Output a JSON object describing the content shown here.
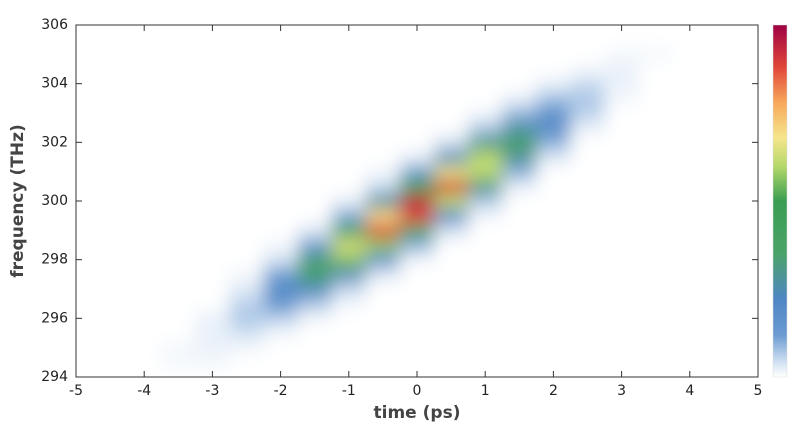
{
  "chart_data": {
    "type": "heatmap",
    "xlabel": "time (ps)",
    "ylabel": "frequency (THz)",
    "x": [
      -5,
      -4.5,
      -4,
      -3.5,
      -3,
      -2.5,
      -2,
      -1.5,
      -1,
      -0.5,
      0,
      0.5,
      1,
      1.5,
      2,
      2.5,
      3,
      3.5,
      4,
      4.5,
      5
    ],
    "y": [
      294,
      294.5,
      295,
      295.5,
      296,
      296.5,
      297,
      297.5,
      298,
      298.5,
      299,
      299.5,
      300,
      300.5,
      301,
      301.5,
      302,
      302.5,
      303,
      303.5,
      304,
      304.5,
      305,
      305.5,
      306
    ],
    "z": [
      [
        0,
        0,
        0,
        0,
        0,
        0,
        0,
        0,
        0,
        0,
        0,
        0,
        0,
        0,
        0,
        0,
        0,
        0,
        0,
        0,
        0
      ],
      [
        0,
        0,
        0,
        0.01,
        0.01,
        0,
        0,
        0,
        0,
        0,
        0,
        0,
        0,
        0,
        0,
        0,
        0,
        0,
        0,
        0,
        0
      ],
      [
        0,
        0,
        0,
        0.01,
        0.02,
        0.01,
        0,
        0,
        0,
        0,
        0,
        0,
        0,
        0,
        0,
        0,
        0,
        0,
        0,
        0,
        0
      ],
      [
        0,
        0,
        0,
        0,
        0.02,
        0.04,
        0.01,
        0,
        0,
        0,
        0,
        0,
        0,
        0,
        0,
        0,
        0,
        0,
        0,
        0,
        0
      ],
      [
        0,
        0,
        0,
        0,
        0.02,
        0.07,
        0.06,
        0.01,
        0,
        0,
        0,
        0,
        0,
        0,
        0,
        0,
        0,
        0,
        0,
        0,
        0
      ],
      [
        0,
        0,
        0,
        0,
        0,
        0.06,
        0.15,
        0.07,
        0.01,
        0,
        0,
        0,
        0,
        0,
        0,
        0,
        0,
        0,
        0,
        0,
        0
      ],
      [
        0,
        0,
        0,
        0,
        0,
        0.03,
        0.19,
        0.23,
        0.05,
        0,
        0,
        0,
        0,
        0,
        0,
        0,
        0,
        0,
        0,
        0,
        0
      ],
      [
        0,
        0,
        0,
        0,
        0,
        0.01,
        0.12,
        0.38,
        0.24,
        0.03,
        0,
        0,
        0,
        0,
        0,
        0,
        0,
        0,
        0,
        0,
        0
      ],
      [
        0,
        0,
        0,
        0,
        0,
        0,
        0.04,
        0.32,
        0.56,
        0.18,
        0.01,
        0,
        0,
        0,
        0,
        0,
        0,
        0,
        0,
        0,
        0
      ],
      [
        0,
        0,
        0,
        0,
        0,
        0,
        0.01,
        0.13,
        0.64,
        0.57,
        0.1,
        0,
        0,
        0,
        0,
        0,
        0,
        0,
        0,
        0,
        0
      ],
      [
        0,
        0,
        0,
        0,
        0,
        0,
        0,
        0.03,
        0.37,
        0.89,
        0.41,
        0.04,
        0,
        0,
        0,
        0,
        0,
        0,
        0,
        0,
        0
      ],
      [
        0,
        0,
        0,
        0,
        0,
        0,
        0,
        0,
        0.11,
        0.7,
        0.88,
        0.21,
        0.01,
        0,
        0,
        0,
        0,
        0,
        0,
        0,
        0
      ],
      [
        0,
        0,
        0,
        0,
        0,
        0,
        0,
        0,
        0.02,
        0.27,
        0.95,
        0.61,
        0.07,
        0,
        0,
        0,
        0,
        0,
        0,
        0,
        0
      ],
      [
        0,
        0,
        0,
        0,
        0,
        0,
        0,
        0,
        0,
        0.05,
        0.51,
        0.9,
        0.3,
        0.02,
        0,
        0,
        0,
        0,
        0,
        0,
        0
      ],
      [
        0,
        0,
        0,
        0,
        0,
        0,
        0,
        0,
        0,
        0.01,
        0.14,
        0.66,
        0.61,
        0.1,
        0,
        0,
        0,
        0,
        0,
        0,
        0
      ],
      [
        0,
        0,
        0,
        0,
        0,
        0,
        0,
        0,
        0,
        0,
        0.02,
        0.24,
        0.61,
        0.28,
        0.03,
        0,
        0,
        0,
        0,
        0,
        0
      ],
      [
        0,
        0,
        0,
        0,
        0,
        0,
        0,
        0,
        0,
        0,
        0,
        0.04,
        0.3,
        0.39,
        0.1,
        0,
        0,
        0,
        0,
        0,
        0
      ],
      [
        0,
        0,
        0,
        0,
        0,
        0,
        0,
        0,
        0,
        0,
        0,
        0,
        0.07,
        0.26,
        0.18,
        0.02,
        0,
        0,
        0,
        0,
        0
      ],
      [
        0,
        0,
        0,
        0,
        0,
        0,
        0,
        0,
        0,
        0,
        0,
        0,
        0.01,
        0.09,
        0.17,
        0.06,
        0,
        0,
        0,
        0,
        0
      ],
      [
        0,
        0,
        0,
        0,
        0,
        0,
        0,
        0,
        0,
        0,
        0,
        0,
        0,
        0.02,
        0.08,
        0.07,
        0.01,
        0,
        0,
        0,
        0
      ],
      [
        0,
        0,
        0,
        0,
        0,
        0,
        0,
        0,
        0,
        0,
        0,
        0,
        0,
        0,
        0.02,
        0.05,
        0.02,
        0,
        0,
        0,
        0
      ],
      [
        0,
        0,
        0,
        0,
        0,
        0,
        0,
        0,
        0,
        0,
        0,
        0,
        0,
        0,
        0,
        0.01,
        0.02,
        0,
        0,
        0,
        0
      ],
      [
        0,
        0,
        0,
        0,
        0,
        0,
        0,
        0,
        0,
        0,
        0,
        0,
        0,
        0,
        0,
        0,
        0.01,
        0.01,
        0,
        0,
        0
      ],
      [
        0,
        0,
        0,
        0,
        0,
        0,
        0,
        0,
        0,
        0,
        0,
        0,
        0,
        0,
        0,
        0,
        0,
        0,
        0,
        0,
        0
      ],
      [
        0,
        0,
        0,
        0,
        0,
        0,
        0,
        0,
        0,
        0,
        0,
        0,
        0,
        0,
        0,
        0,
        0,
        0,
        0,
        0,
        0
      ]
    ],
    "xlim": [
      -5,
      5
    ],
    "ylim": [
      294,
      306
    ],
    "zlim": [
      0,
      1
    ],
    "xticks": [
      -5,
      -4,
      -3,
      -2,
      -1,
      0,
      1,
      2,
      3,
      4,
      5
    ],
    "yticks": [
      294,
      296,
      298,
      300,
      302,
      304,
      306
    ],
    "colorscale": [
      [
        0,
        "#ffffff"
      ],
      [
        0.04,
        "#d3e2f3"
      ],
      [
        0.12,
        "#6b9bd1"
      ],
      [
        0.22,
        "#4f86c4"
      ],
      [
        0.35,
        "#4aa36a"
      ],
      [
        0.5,
        "#3b9d52"
      ],
      [
        0.6,
        "#b6d96a"
      ],
      [
        0.68,
        "#f6e58c"
      ],
      [
        0.78,
        "#f7a859"
      ],
      [
        0.88,
        "#e0463a"
      ],
      [
        1,
        "#9e0142"
      ]
    ]
  }
}
